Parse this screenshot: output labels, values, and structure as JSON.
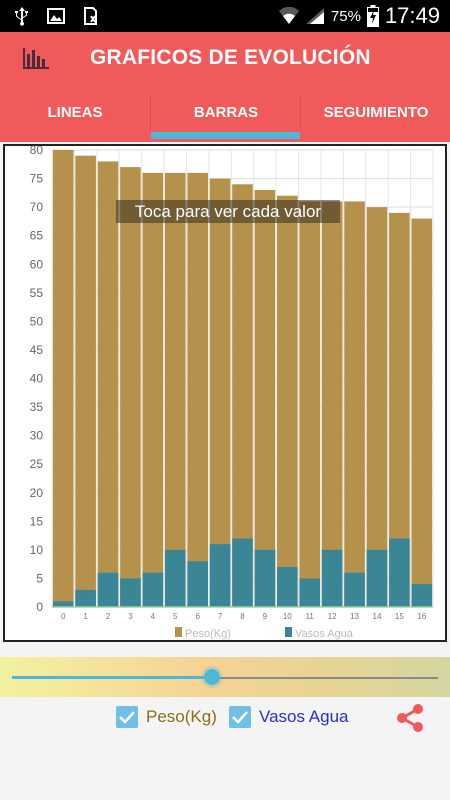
{
  "status_bar": {
    "battery_percent": "75%",
    "time": "17:49",
    "icons": [
      "usb-icon",
      "image-icon",
      "sdcard-icon",
      "wifi-icon",
      "signal-icon",
      "battery-charging-icon"
    ]
  },
  "app_bar": {
    "title": "GRAFICOS DE EVOLUCIÓN",
    "icon": "bar-chart-icon"
  },
  "tabs": [
    {
      "label": "LINEAS",
      "selected": false
    },
    {
      "label": "BARRAS",
      "selected": true
    },
    {
      "label": "SEGUIMIENTO",
      "selected": false
    }
  ],
  "chart_data": {
    "type": "bar",
    "stacked": "overlay",
    "categories": [
      "0",
      "1",
      "2",
      "3",
      "4",
      "5",
      "6",
      "7",
      "8",
      "9",
      "10",
      "11",
      "12",
      "13",
      "14",
      "15",
      "16"
    ],
    "series": [
      {
        "name": "Peso(Kg)",
        "color": "#b5924c",
        "values": [
          80,
          79,
          78,
          77,
          76,
          76,
          76,
          75,
          74,
          73,
          72,
          71,
          71,
          71,
          70,
          69,
          68
        ]
      },
      {
        "name": "Vasos Agua",
        "color": "#3a8696",
        "values": [
          1,
          3,
          6,
          5,
          6,
          10,
          8,
          11,
          12,
          10,
          7,
          5,
          10,
          6,
          10,
          12,
          4
        ]
      }
    ],
    "yticks": [
      0,
      5,
      10,
      15,
      20,
      25,
      30,
      35,
      40,
      45,
      50,
      55,
      60,
      65,
      70,
      75,
      80
    ],
    "ylim": [
      0,
      80
    ],
    "grid": true,
    "legend": "bottom",
    "annotation": "Toca para ver cada valor"
  },
  "slider": {
    "fraction": 0.47
  },
  "checkboxes": [
    {
      "label": "Peso(Kg)",
      "checked": true,
      "color": "#8a6d1e"
    },
    {
      "label": "Vasos Agua",
      "checked": true,
      "color": "#2d2dd0"
    }
  ],
  "share_icon": "share-icon",
  "colors": {
    "accent": "#f05a5a",
    "indicator": "#4fb6d8"
  }
}
